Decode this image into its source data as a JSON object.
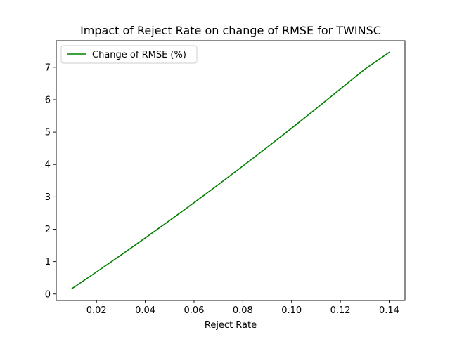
{
  "chart_data": {
    "type": "line",
    "title": "Impact of Reject Rate on change of RMSE for TWINSC",
    "xlabel": "Reject Rate",
    "ylabel": "",
    "xlim": [
      0.0035,
      0.1465
    ],
    "ylim": [
      -0.2,
      7.82
    ],
    "xticks": [
      0.02,
      0.04,
      0.06,
      0.08,
      0.1,
      0.12,
      0.14
    ],
    "xtick_labels": [
      "0.02",
      "0.04",
      "0.06",
      "0.08",
      "0.10",
      "0.12",
      "0.14"
    ],
    "yticks": [
      0,
      1,
      2,
      3,
      4,
      5,
      6,
      7
    ],
    "ytick_labels": [
      "0",
      "1",
      "2",
      "3",
      "4",
      "5",
      "6",
      "7"
    ],
    "grid": false,
    "legend_position": "top-left",
    "series": [
      {
        "name": "Change of RMSE (%)",
        "color": "#008000",
        "x": [
          0.01,
          0.02,
          0.03,
          0.04,
          0.05,
          0.06,
          0.07,
          0.08,
          0.09,
          0.1,
          0.11,
          0.12,
          0.13,
          0.14
        ],
        "y": [
          0.17,
          0.68,
          1.2,
          1.73,
          2.27,
          2.82,
          3.38,
          3.95,
          4.53,
          5.12,
          5.72,
          6.33,
          6.94,
          7.46
        ]
      }
    ]
  }
}
